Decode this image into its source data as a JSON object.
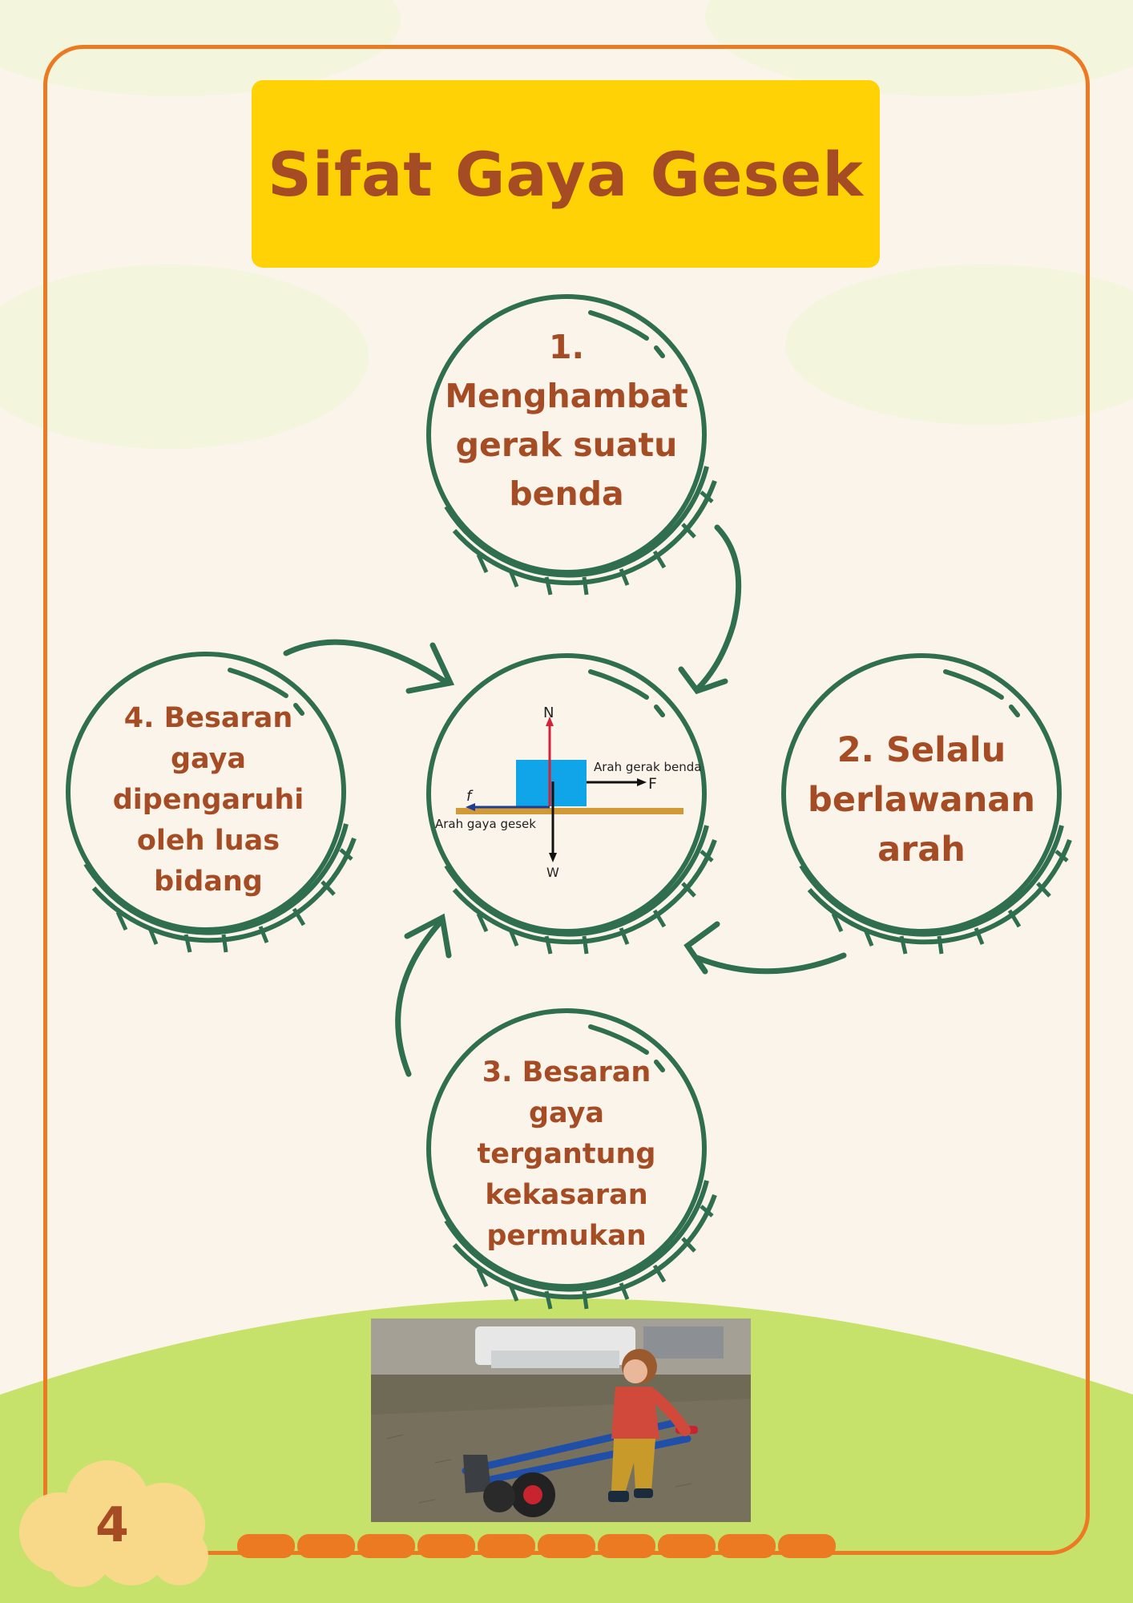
{
  "page": {
    "title": "Sifat Gaya Gesek",
    "page_number": "4"
  },
  "nodes": {
    "top": [
      "1.",
      "Menghambat",
      "gerak suatu",
      "benda"
    ],
    "right": [
      "2. Selalu",
      "berlawanan",
      "arah"
    ],
    "bottom": [
      "3. Besaran",
      "gaya",
      "tergantung",
      "kekasaran",
      "permukan"
    ],
    "left": [
      "4. Besaran",
      "gaya",
      "dipengaruhi",
      "oleh luas",
      "bidang"
    ]
  },
  "diagram": {
    "normal_label": "N",
    "weight_label": "W",
    "force_label": "F",
    "friction_label": "f",
    "motion_direction_label": "Arah gerak benda",
    "friction_direction_label": "Arah gaya gesek"
  },
  "colors": {
    "background": "#fbf4ea",
    "frame": "#ec7a22",
    "title_box": "#fed204",
    "text": "#a54c25",
    "circle_stroke": "#2f6e4e",
    "ground": "#c7e26a",
    "page_badge": "#f8d98a",
    "block": "#10a5e8",
    "surface": "#d29a36"
  },
  "icons": {
    "photo": "child-pushing-hand-truck-photo",
    "arrows": "curved-arrow"
  }
}
